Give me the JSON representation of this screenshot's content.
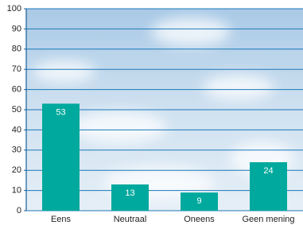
{
  "chart_data": {
    "type": "bar",
    "categories": [
      "Eens",
      "Neutraal",
      "Oneens",
      "Geen mening"
    ],
    "values": [
      53,
      13,
      9,
      24
    ],
    "color": "#00a99d",
    "ylim": [
      0,
      100
    ],
    "yticks": [
      0,
      10,
      20,
      30,
      40,
      50,
      60,
      70,
      80,
      90,
      100
    ],
    "grid": true
  }
}
